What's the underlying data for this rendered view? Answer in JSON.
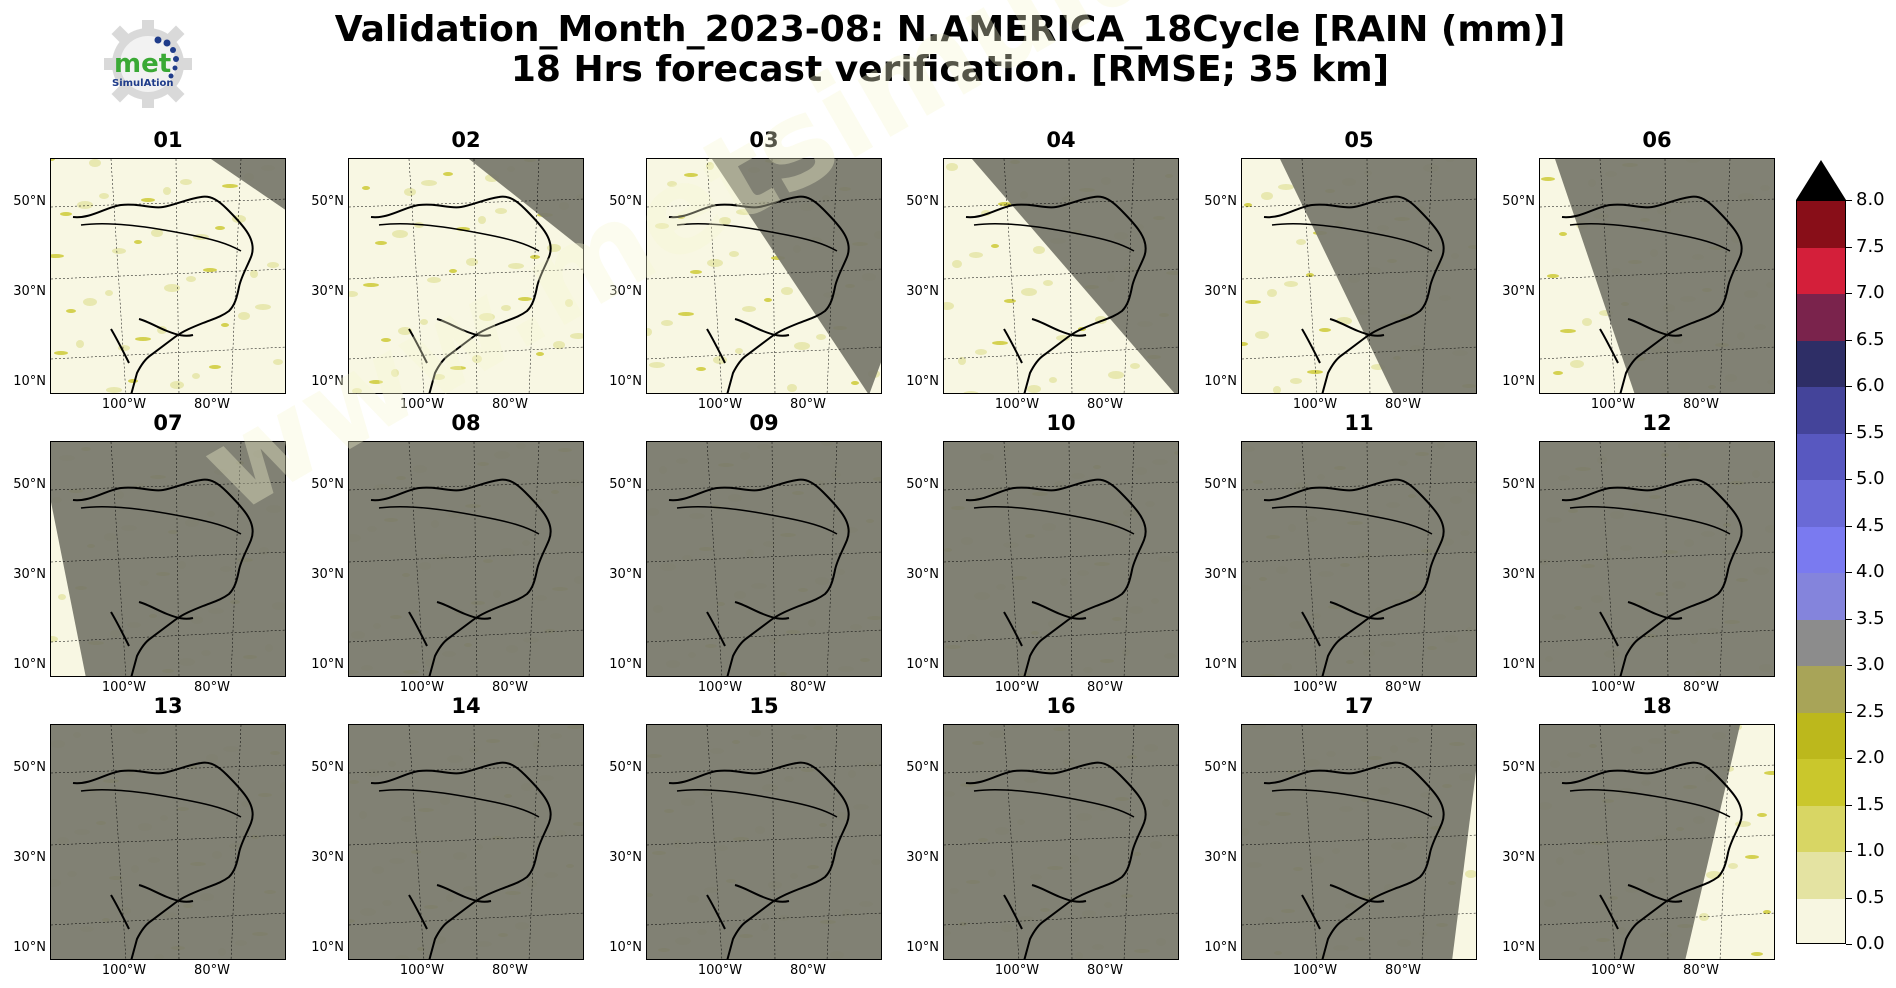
{
  "header": {
    "title_line1": "Validation_Month_2023-08: N.AMERICA_18Cycle [RAIN (mm)]",
    "title_line2": "18 Hrs forecast verification.  [RMSE; 35 km]",
    "logo_text": "met",
    "logo_subtext": "SimulAtion"
  },
  "watermark": "www.metsimulation.com",
  "axes": {
    "lat_labels": [
      "50°N",
      "30°N",
      "10°N"
    ],
    "lon_labels": [
      "100°W",
      "80°W"
    ]
  },
  "colors": {
    "night_gray": "#7a7a6e",
    "day_base": "#f8f7e3",
    "coast": "#000000"
  },
  "chart_data": {
    "type": "heatmap",
    "variable": "RAIN (mm)",
    "statistic": "RMSE",
    "resolution": "35 km",
    "panels": [
      "01",
      "02",
      "03",
      "04",
      "05",
      "06",
      "07",
      "08",
      "09",
      "10",
      "11",
      "12",
      "13",
      "14",
      "15",
      "16",
      "17",
      "18"
    ],
    "colorbar": {
      "ticks": [
        "0.0",
        "0.5",
        "1.0",
        "1.5",
        "2.0",
        "2.5",
        "3.0",
        "3.5",
        "4.0",
        "4.5",
        "5.0",
        "5.5",
        "6.0",
        "6.5",
        "7.0",
        "7.5",
        "8.0"
      ],
      "range": [
        0.0,
        8.0
      ],
      "extend": "max",
      "bin_colors": [
        "#f7f6e1",
        "#e4e3a2",
        "#d8d664",
        "#cac72c",
        "#bcb81c",
        "#a8a458",
        "#8c8c8c",
        "#8484dc",
        "#7a7af0",
        "#6a6ad6",
        "#5858c0",
        "#44449a",
        "#2e2e66",
        "#7a234c",
        "#d41f3a",
        "#880e18"
      ],
      "extend_color": "#000000"
    }
  }
}
